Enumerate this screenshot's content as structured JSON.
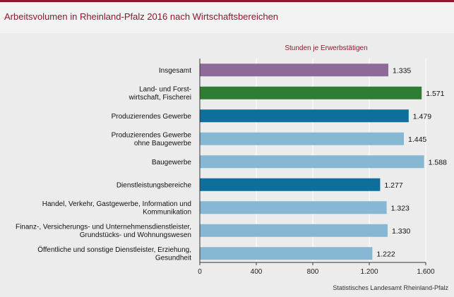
{
  "header": {
    "title": "Arbeitsvolumen in Rheinland-Pfalz 2016 nach Wirtschaftsbereichen"
  },
  "source": "Statistisches Landesamt Rheinland-Pfalz",
  "chart_data": {
    "type": "bar",
    "orientation": "horizontal",
    "title": "Arbeitsvolumen in Rheinland-Pfalz 2016 nach Wirtschaftsbereichen",
    "xlabel": "Stunden je Erwerbstätigen",
    "ylabel": "",
    "xlim": [
      0,
      1600
    ],
    "x_ticks": [
      0,
      400,
      800,
      1200,
      1600
    ],
    "x_tick_labels": [
      "0",
      "400",
      "800",
      "1.200",
      "1.600"
    ],
    "grid": true,
    "categories": [
      [
        "Insgesamt"
      ],
      [
        "Land- und Forst-",
        "wirtschaft, Fischerei"
      ],
      [
        "Produzierendes Gewerbe"
      ],
      [
        "Produzierendes Gewerbe",
        "ohne Baugewerbe"
      ],
      [
        "Baugewerbe"
      ],
      [
        "Dienstleistungsbereiche"
      ],
      [
        "Handel, Verkehr, Gastgewerbe, Information und",
        "Kommunikation"
      ],
      [
        "Finanz-, Versicherungs- und Unternehmensdienstleister,",
        "Grundstücks- und Wohnungswesen"
      ],
      [
        "Öffentliche und sonstige Dienstleister, Erziehung,",
        "Gesundheit"
      ]
    ],
    "values": [
      1335,
      1571,
      1479,
      1445,
      1588,
      1277,
      1323,
      1330,
      1222
    ],
    "value_labels": [
      "1.335",
      "1.571",
      "1.479",
      "1.445",
      "1.588",
      "1.277",
      "1.323",
      "1.330",
      "1.222"
    ],
    "bar_colors": [
      "#8e6a9a",
      "#2e7d32",
      "#0e6e9c",
      "#86b8d4",
      "#86b8d4",
      "#0e6e9c",
      "#86b8d4",
      "#86b8d4",
      "#86b8d4"
    ]
  }
}
